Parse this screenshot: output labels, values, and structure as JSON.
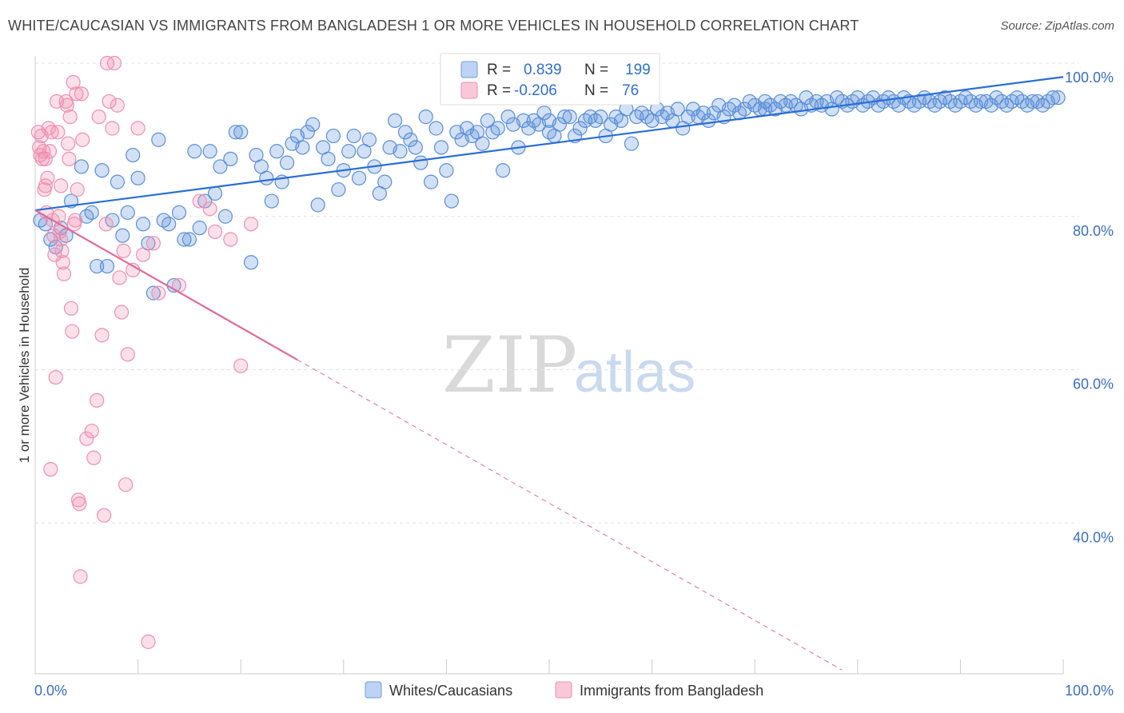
{
  "title": "WHITE/CAUCASIAN VS IMMIGRANTS FROM BANGLADESH 1 OR MORE VEHICLES IN HOUSEHOLD CORRELATION CHART",
  "source": "Source: ZipAtlas.com",
  "watermark": {
    "zip": "ZIP",
    "atlas": "atlas"
  },
  "legend": {
    "r_label": "R =",
    "n_label": "N =",
    "series": [
      {
        "r": "0.839",
        "n": "199"
      },
      {
        "r": "-0.206",
        "n": "76"
      }
    ]
  },
  "chart_data": {
    "type": "scatter",
    "xlabel": "",
    "ylabel": "1 or more Vehicles in Household",
    "xlim": [
      0,
      100
    ],
    "ylim": [
      20,
      102
    ],
    "x_tick_labels": {
      "min": "0.0%",
      "max": "100.0%"
    },
    "y_ticks": [
      {
        "value": 100,
        "label": "100.0%"
      },
      {
        "value": 80,
        "label": "80.0%"
      },
      {
        "value": 60,
        "label": "60.0%"
      },
      {
        "value": 40,
        "label": "40.0%"
      }
    ],
    "grid": true,
    "legend_position": "top-center",
    "series": [
      {
        "name": "Whites/Caucasians",
        "color": "#5b8fd9",
        "trend": {
          "x0": 0,
          "y0": 80.8,
          "x1": 100,
          "y1": 98.2,
          "color": "#2a6ed4"
        },
        "points": [
          [
            0.5,
            79.5
          ],
          [
            1.0,
            79.0
          ],
          [
            1.5,
            77.0
          ],
          [
            2.0,
            76.0
          ],
          [
            2.5,
            78.5
          ],
          [
            3.0,
            77.5
          ],
          [
            3.5,
            82.0
          ],
          [
            4.5,
            86.5
          ],
          [
            5.0,
            80.0
          ],
          [
            5.5,
            80.5
          ],
          [
            6.0,
            73.5
          ],
          [
            6.5,
            86.0
          ],
          [
            7.0,
            73.5
          ],
          [
            7.5,
            79.5
          ],
          [
            8.0,
            84.5
          ],
          [
            8.5,
            77.5
          ],
          [
            9.0,
            80.5
          ],
          [
            9.5,
            88.0
          ],
          [
            10.0,
            85.0
          ],
          [
            10.5,
            79.0
          ],
          [
            11.0,
            76.5
          ],
          [
            11.5,
            70.0
          ],
          [
            12.0,
            90.0
          ],
          [
            12.5,
            79.5
          ],
          [
            13.0,
            79.0
          ],
          [
            13.5,
            71.0
          ],
          [
            14.0,
            80.5
          ],
          [
            14.5,
            77.0
          ],
          [
            15.0,
            77.0
          ],
          [
            15.5,
            88.5
          ],
          [
            16.0,
            78.5
          ],
          [
            16.5,
            82.0
          ],
          [
            17.0,
            88.5
          ],
          [
            17.5,
            83.0
          ],
          [
            18.0,
            86.5
          ],
          [
            18.5,
            80.0
          ],
          [
            19.0,
            87.5
          ],
          [
            19.5,
            91.0
          ],
          [
            20.0,
            91.0
          ],
          [
            21.0,
            74.0
          ],
          [
            21.5,
            88.0
          ],
          [
            22.0,
            86.5
          ],
          [
            22.5,
            85.0
          ],
          [
            23.0,
            82.0
          ],
          [
            23.5,
            88.5
          ],
          [
            24.0,
            84.5
          ],
          [
            24.5,
            87.0
          ],
          [
            25.0,
            89.5
          ],
          [
            25.5,
            90.5
          ],
          [
            26.0,
            89.0
          ],
          [
            26.5,
            91.0
          ],
          [
            27.0,
            92.0
          ],
          [
            27.5,
            81.5
          ],
          [
            28.0,
            89.0
          ],
          [
            28.5,
            87.5
          ],
          [
            29.0,
            90.5
          ],
          [
            29.5,
            83.5
          ],
          [
            30.0,
            86.0
          ],
          [
            30.5,
            88.5
          ],
          [
            31.0,
            90.5
          ],
          [
            31.5,
            85.0
          ],
          [
            32.0,
            88.5
          ],
          [
            32.5,
            90.0
          ],
          [
            33.0,
            86.5
          ],
          [
            33.5,
            83.0
          ],
          [
            34.0,
            84.5
          ],
          [
            34.5,
            89.0
          ],
          [
            35.0,
            92.5
          ],
          [
            35.5,
            88.5
          ],
          [
            36.0,
            91.0
          ],
          [
            36.5,
            90.0
          ],
          [
            37.0,
            89.0
          ],
          [
            37.5,
            87.0
          ],
          [
            38.0,
            93.0
          ],
          [
            38.5,
            84.5
          ],
          [
            39.0,
            91.5
          ],
          [
            39.5,
            89.0
          ],
          [
            40.0,
            86.0
          ],
          [
            40.5,
            82.0
          ],
          [
            41.0,
            91.0
          ],
          [
            41.5,
            90.0
          ],
          [
            42.0,
            91.5
          ],
          [
            42.5,
            90.5
          ],
          [
            43.0,
            91.0
          ],
          [
            43.5,
            89.5
          ],
          [
            44.0,
            92.5
          ],
          [
            44.5,
            91.0
          ],
          [
            45.0,
            91.5
          ],
          [
            45.5,
            86.0
          ],
          [
            46.0,
            93.0
          ],
          [
            46.5,
            92.0
          ],
          [
            47.0,
            89.0
          ],
          [
            47.5,
            92.5
          ],
          [
            48.0,
            91.5
          ],
          [
            48.5,
            92.5
          ],
          [
            49.0,
            92.0
          ],
          [
            49.5,
            93.5
          ],
          [
            50.0,
            92.5
          ],
          [
            50.5,
            90.5
          ],
          [
            51.0,
            92.0
          ],
          [
            51.5,
            93.0
          ],
          [
            52.0,
            93.0
          ],
          [
            52.5,
            90.5
          ],
          [
            53.0,
            91.5
          ],
          [
            53.5,
            92.5
          ],
          [
            54.0,
            93.0
          ],
          [
            54.5,
            92.5
          ],
          [
            55.0,
            93.0
          ],
          [
            55.5,
            90.5
          ],
          [
            56.0,
            92.0
          ],
          [
            56.5,
            93.0
          ],
          [
            57.0,
            92.5
          ],
          [
            57.5,
            94.0
          ],
          [
            58.0,
            89.5
          ],
          [
            58.5,
            93.0
          ],
          [
            59.0,
            93.5
          ],
          [
            59.5,
            93.0
          ],
          [
            60.0,
            92.5
          ],
          [
            60.5,
            94.0
          ],
          [
            61.0,
            93.0
          ],
          [
            61.5,
            93.5
          ],
          [
            62.0,
            92.5
          ],
          [
            62.5,
            94.0
          ],
          [
            63.0,
            91.5
          ],
          [
            63.5,
            93.0
          ],
          [
            64.0,
            94.0
          ],
          [
            64.5,
            93.0
          ],
          [
            65.0,
            93.5
          ],
          [
            65.5,
            92.5
          ],
          [
            66.0,
            93.5
          ],
          [
            66.5,
            94.5
          ],
          [
            67.0,
            93.0
          ],
          [
            67.5,
            94.0
          ],
          [
            68.0,
            94.5
          ],
          [
            68.5,
            93.5
          ],
          [
            69.0,
            94.0
          ],
          [
            69.5,
            95.0
          ],
          [
            70.0,
            94.5
          ],
          [
            70.5,
            94.0
          ],
          [
            71.0,
            95.0
          ],
          [
            71.5,
            94.5
          ],
          [
            72.0,
            94.0
          ],
          [
            72.5,
            95.0
          ],
          [
            73.0,
            94.5
          ],
          [
            73.5,
            95.0
          ],
          [
            74.0,
            94.5
          ],
          [
            74.5,
            94.0
          ],
          [
            75.0,
            95.5
          ],
          [
            75.5,
            94.5
          ],
          [
            76.0,
            95.0
          ],
          [
            76.5,
            94.5
          ],
          [
            77.0,
            95.0
          ],
          [
            77.5,
            94.0
          ],
          [
            78.0,
            95.5
          ],
          [
            78.5,
            95.0
          ],
          [
            79.0,
            94.5
          ],
          [
            79.5,
            95.0
          ],
          [
            80.0,
            95.5
          ],
          [
            80.5,
            94.5
          ],
          [
            81.0,
            95.0
          ],
          [
            81.5,
            95.5
          ],
          [
            82.0,
            94.5
          ],
          [
            82.5,
            95.0
          ],
          [
            83.0,
            95.5
          ],
          [
            83.5,
            95.0
          ],
          [
            84.0,
            94.5
          ],
          [
            84.5,
            95.5
          ],
          [
            85.0,
            95.0
          ],
          [
            85.5,
            94.5
          ],
          [
            86.0,
            95.0
          ],
          [
            86.5,
            95.5
          ],
          [
            87.0,
            95.0
          ],
          [
            87.5,
            94.5
          ],
          [
            88.0,
            95.0
          ],
          [
            88.5,
            95.5
          ],
          [
            89.0,
            95.0
          ],
          [
            89.5,
            94.5
          ],
          [
            90.0,
            95.0
          ],
          [
            90.5,
            95.5
          ],
          [
            91.0,
            95.0
          ],
          [
            91.5,
            94.5
          ],
          [
            92.0,
            95.0
          ],
          [
            92.5,
            95.0
          ],
          [
            93.0,
            94.5
          ],
          [
            93.5,
            95.5
          ],
          [
            94.0,
            95.0
          ],
          [
            94.5,
            94.5
          ],
          [
            95.0,
            95.0
          ],
          [
            95.5,
            95.5
          ],
          [
            96.0,
            95.0
          ],
          [
            96.5,
            94.5
          ],
          [
            97.0,
            95.0
          ],
          [
            97.5,
            95.0
          ],
          [
            98.0,
            94.5
          ],
          [
            98.5,
            95.0
          ],
          [
            99.0,
            95.5
          ],
          [
            99.5,
            95.5
          ],
          [
            71.0,
            94.0
          ],
          [
            50.0,
            91.0
          ]
        ]
      },
      {
        "name": "Immigrants from Bangladesh",
        "color": "#f08fb0",
        "trend": {
          "x0": 0,
          "y0": 80.8,
          "x1": 25.5,
          "y1": 61.3,
          "dash_x1": 78.5,
          "dash_y1": 20.8,
          "color": "#e06a9a"
        },
        "points": [
          [
            0.3,
            91.0
          ],
          [
            0.4,
            89.0
          ],
          [
            0.5,
            88.0
          ],
          [
            0.6,
            90.5
          ],
          [
            0.7,
            87.5
          ],
          [
            0.8,
            88.5
          ],
          [
            0.9,
            83.5
          ],
          [
            1.0,
            84.0
          ],
          [
            1.1,
            80.5
          ],
          [
            1.2,
            85.0
          ],
          [
            1.3,
            91.5
          ],
          [
            1.4,
            88.5
          ],
          [
            1.5,
            47.0
          ],
          [
            1.6,
            91.0
          ],
          [
            1.7,
            79.5
          ],
          [
            1.8,
            77.5
          ],
          [
            1.9,
            75.0
          ],
          [
            2.0,
            59.0
          ],
          [
            2.1,
            95.0
          ],
          [
            2.2,
            91.0
          ],
          [
            2.3,
            80.0
          ],
          [
            2.4,
            78.0
          ],
          [
            2.5,
            77.0
          ],
          [
            2.6,
            75.5
          ],
          [
            2.7,
            74.0
          ],
          [
            2.8,
            72.5
          ],
          [
            3.0,
            95.0
          ],
          [
            3.1,
            94.5
          ],
          [
            3.2,
            89.5
          ],
          [
            3.3,
            87.5
          ],
          [
            3.4,
            93.0
          ],
          [
            3.5,
            68.0
          ],
          [
            3.6,
            65.0
          ],
          [
            3.7,
            97.5
          ],
          [
            3.8,
            79.0
          ],
          [
            3.9,
            79.5
          ],
          [
            4.0,
            96.0
          ],
          [
            4.1,
            83.5
          ],
          [
            4.2,
            43.0
          ],
          [
            4.3,
            42.5
          ],
          [
            4.4,
            33.0
          ],
          [
            4.5,
            96.0
          ],
          [
            4.6,
            90.0
          ],
          [
            5.0,
            51.0
          ],
          [
            5.5,
            52.0
          ],
          [
            5.7,
            48.5
          ],
          [
            6.0,
            56.0
          ],
          [
            6.2,
            93.0
          ],
          [
            6.5,
            64.5
          ],
          [
            6.7,
            41.0
          ],
          [
            6.9,
            79.0
          ],
          [
            7.0,
            100.0
          ],
          [
            7.2,
            95.0
          ],
          [
            7.5,
            91.5
          ],
          [
            7.7,
            100.0
          ],
          [
            8.0,
            94.5
          ],
          [
            8.2,
            72.0
          ],
          [
            8.4,
            67.5
          ],
          [
            8.6,
            75.5
          ],
          [
            8.8,
            45.0
          ],
          [
            9.0,
            62.0
          ],
          [
            9.5,
            73.0
          ],
          [
            10.0,
            91.5
          ],
          [
            10.5,
            75.0
          ],
          [
            11.0,
            24.5
          ],
          [
            11.5,
            76.5
          ],
          [
            12.0,
            70.0
          ],
          [
            14.0,
            71.0
          ],
          [
            16.0,
            82.0
          ],
          [
            17.0,
            81.0
          ],
          [
            17.5,
            78.0
          ],
          [
            19.0,
            77.0
          ],
          [
            20.0,
            60.5
          ],
          [
            21.0,
            79.0
          ],
          [
            1.0,
            87.5
          ],
          [
            2.5,
            84.0
          ]
        ]
      }
    ]
  }
}
